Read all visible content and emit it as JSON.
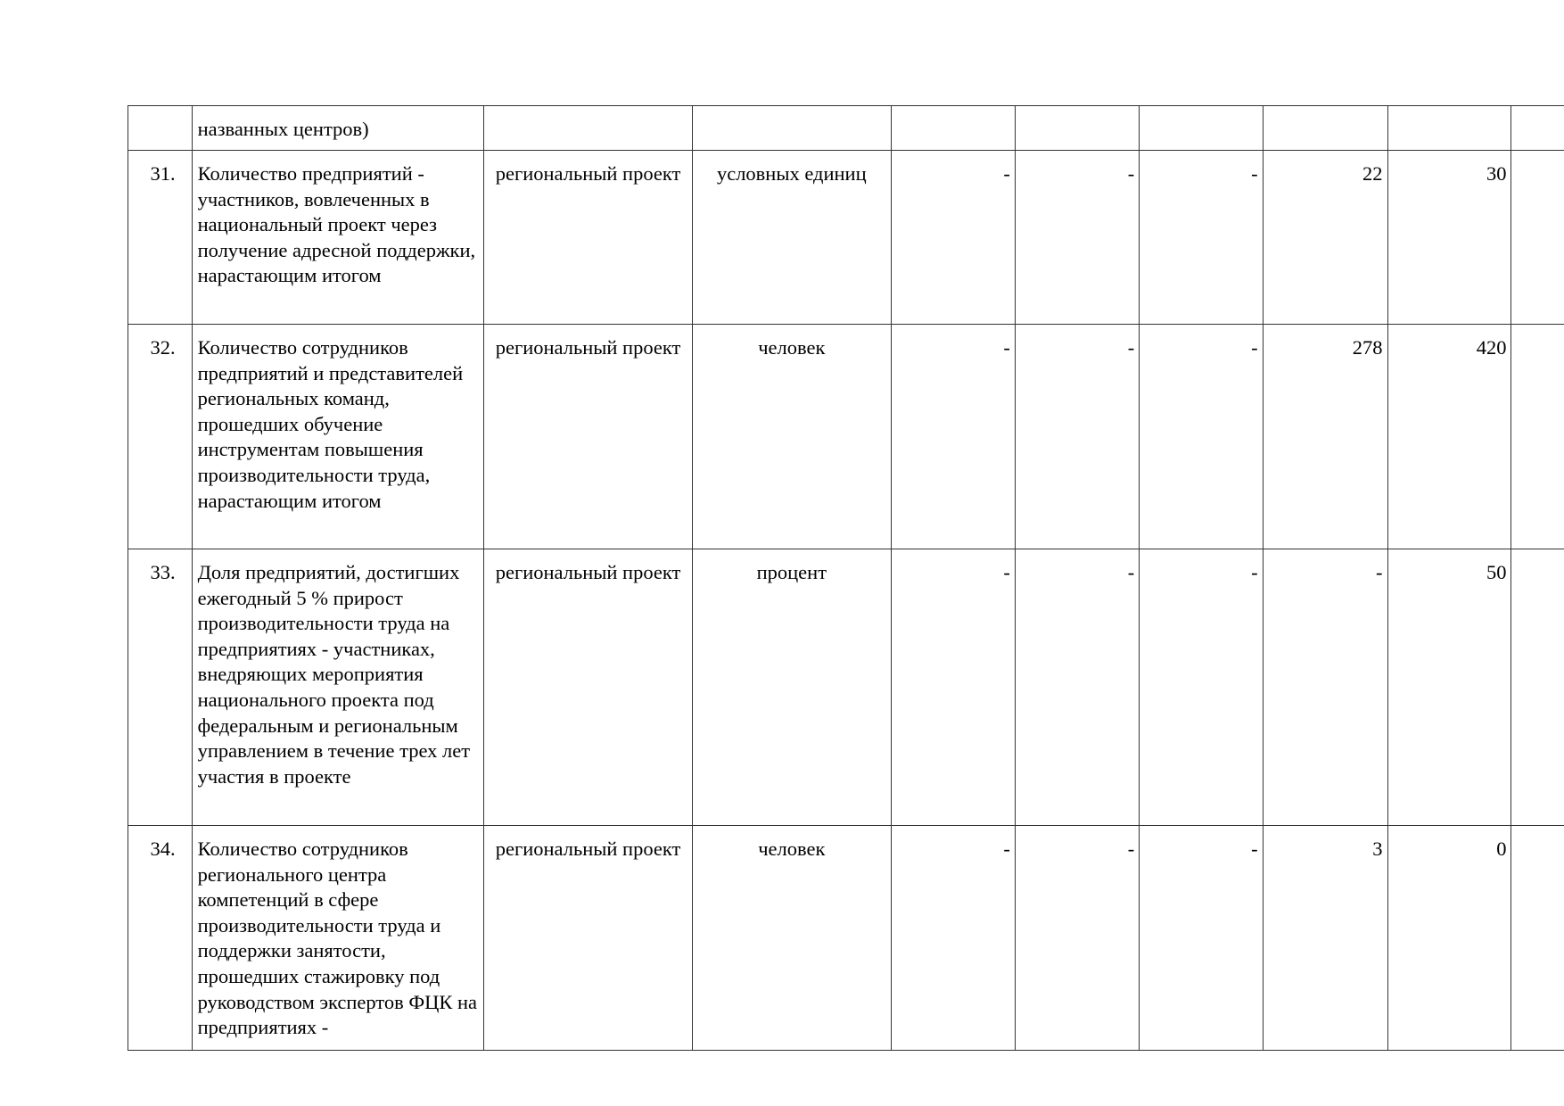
{
  "table": {
    "rows": [
      {
        "num": "",
        "name": "названных центров)",
        "level": "",
        "unit": "",
        "values": [
          "",
          "",
          "",
          "",
          ""
        ]
      },
      {
        "num": "31.",
        "name": "Количество предприятий - участников, вовлеченных в национальный проект через получение адресной поддержки, нарастающим итогом",
        "level": "региональный проект",
        "unit": "условных единиц",
        "values": [
          "-",
          "-",
          "-",
          "22",
          "30"
        ]
      },
      {
        "num": "32.",
        "name": "Количество сотрудников предприятий и представителей региональных команд, прошедших обучение инструментам повышения производительности труда, нарастающим итогом",
        "level": "региональный проект",
        "unit": "человек",
        "values": [
          "-",
          "-",
          "-",
          "278",
          "420"
        ]
      },
      {
        "num": "33.",
        "name": "Доля предприятий, достигших ежегодный 5 % прирост производительности труда на предприятиях - участниках, внедряющих мероприятия национального проекта под федеральным и региональным управлением в течение трех лет участия в проекте",
        "level": "региональный проект",
        "unit": "процент",
        "values": [
          "-",
          "-",
          "-",
          "-",
          "50"
        ]
      },
      {
        "num": "34.",
        "name": "Количество сотрудников регионального центра компетенций в сфере производительности труда и поддержки занятости, прошедших стажировку под руководством экспертов ФЦК на предприятиях -",
        "level": "региональный проект",
        "unit": "человек",
        "values": [
          "-",
          "-",
          "-",
          "3",
          "0"
        ]
      }
    ]
  }
}
